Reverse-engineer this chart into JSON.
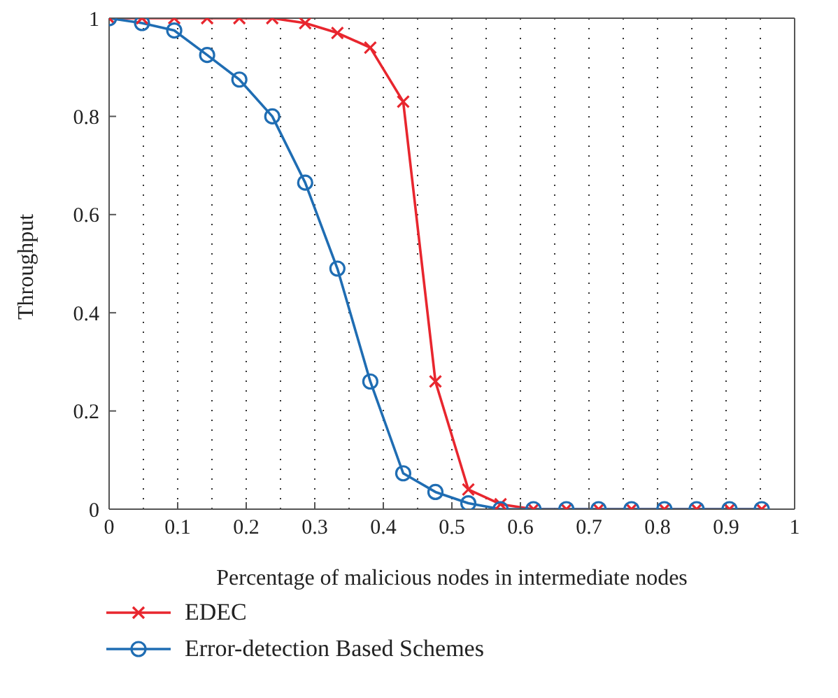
{
  "chart_data": {
    "type": "line",
    "xlabel": "Percentage of malicious nodes in intermediate nodes",
    "ylabel": "Throughput",
    "x": [
      0,
      0.048,
      0.095,
      0.143,
      0.19,
      0.238,
      0.286,
      0.333,
      0.381,
      0.429,
      0.476,
      0.524,
      0.571,
      0.619,
      0.667,
      0.714,
      0.762,
      0.81,
      0.857,
      0.905,
      0.952
    ],
    "series": [
      {
        "name": "EDEC",
        "color": "#e8262e",
        "marker": "cross",
        "values": [
          1,
          1,
          1,
          1,
          1,
          1,
          0.99,
          0.97,
          0.94,
          0.83,
          0.26,
          0.04,
          0.01,
          0,
          0,
          0,
          0,
          0,
          0,
          0,
          0
        ]
      },
      {
        "name": "Error-detection Based Schemes",
        "color": "#1f6db3",
        "marker": "circle",
        "values": [
          1,
          0.99,
          0.975,
          0.925,
          0.875,
          0.8,
          0.665,
          0.49,
          0.26,
          0.073,
          0.035,
          0.012,
          0,
          0,
          0,
          0,
          0,
          0,
          0,
          0,
          0
        ]
      }
    ],
    "xlim": [
      0,
      1
    ],
    "xticks": [
      0,
      0.1,
      0.2,
      0.3,
      0.4,
      0.5,
      0.6,
      0.7,
      0.8,
      0.9,
      1
    ],
    "ylim": [
      0,
      1
    ],
    "yticks": [
      0,
      0.2,
      0.4,
      0.6,
      0.8,
      1
    ],
    "grid": true,
    "legend": "bottom left",
    "line_style": "solid"
  }
}
